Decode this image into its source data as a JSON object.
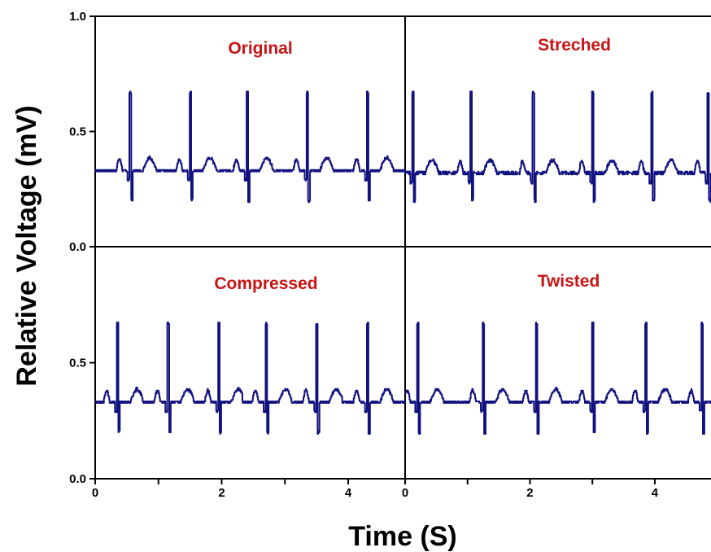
{
  "chart_data": {
    "type": "line",
    "xlabel": "Time (S)",
    "ylabel": "Relative Voltage (mV)",
    "trace_color": "#12127f",
    "label_color": "#c81414",
    "x_ticks": [
      "0",
      "2",
      "4"
    ],
    "y_ticks": [
      "0.0",
      "0.5",
      "1.0"
    ],
    "panels": [
      {
        "label": "Original",
        "xlim": [
          0,
          4.9
        ],
        "ylim": [
          0,
          1
        ],
        "baseline": 0.33,
        "beats": [
          0.55,
          1.5,
          2.4,
          3.35,
          4.3
        ],
        "peak": 0.67,
        "trough": 0.2
      },
      {
        "label": "Streched",
        "xlim": [
          0,
          4.9
        ],
        "ylim": [
          0,
          1
        ],
        "baseline": 0.32,
        "beats": [
          0.12,
          1.05,
          2.05,
          3.0,
          3.95,
          4.85
        ],
        "peak": 0.67,
        "trough": 0.2
      },
      {
        "label": "Compressed",
        "xlim": [
          0,
          4.9
        ],
        "ylim": [
          0,
          1
        ],
        "baseline": 0.33,
        "beats": [
          0.35,
          1.15,
          1.95,
          2.7,
          3.5,
          4.3
        ],
        "peak": 0.67,
        "trough": 0.2
      },
      {
        "label": "Twisted",
        "xlim": [
          0,
          4.9
        ],
        "ylim": [
          0,
          1
        ],
        "baseline": 0.33,
        "beats": [
          0.2,
          1.25,
          2.1,
          3.0,
          3.85,
          4.75
        ],
        "peak": 0.67,
        "trough": 0.2
      }
    ]
  }
}
